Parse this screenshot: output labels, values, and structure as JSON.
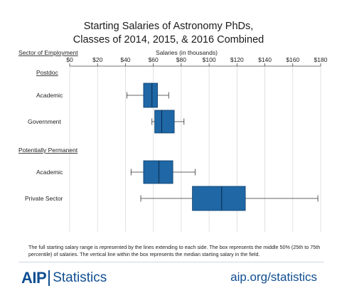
{
  "title_lines": [
    "Starting Salaries of Astronomy PhDs,",
    "Classes of 2014, 2015, & 2016 Combined"
  ],
  "chart_data": {
    "type": "boxplot",
    "orientation": "horizontal",
    "title": "Starting Salaries of Astronomy PhDs, Classes of 2014, 2015, & 2016 Combined",
    "xlabel": "Salaries (in thousands)",
    "row_header": "Sector of Employment",
    "xlim": [
      0,
      180
    ],
    "ticks": [
      0,
      20,
      40,
      60,
      80,
      100,
      120,
      140,
      160,
      180
    ],
    "tick_labels": [
      "$0",
      "$20",
      "$40",
      "$60",
      "$80",
      "$100",
      "$120",
      "$140",
      "$160",
      "$180"
    ],
    "grid": true,
    "groups": [
      {
        "label": "Postdoc",
        "rows": [
          {
            "category": "Academic",
            "min": 41,
            "q1": 53,
            "median": 59,
            "q3": 63,
            "max": 71
          },
          {
            "category": "Government",
            "min": 59,
            "q1": 61,
            "median": 66,
            "q3": 75,
            "max": 82
          }
        ]
      },
      {
        "label": "Potentially Permanent",
        "rows": [
          {
            "category": "Academic",
            "min": 44,
            "q1": 53,
            "median": 64,
            "q3": 74,
            "max": 90
          },
          {
            "category": "Private Sector",
            "min": 51,
            "q1": 88,
            "median": 109,
            "q3": 126,
            "max": 178
          }
        ]
      }
    ],
    "box_color": "#1f67a5"
  },
  "footnote": "The full starting salary range is represented by the lines extending to each side. The box represents the middle 50% (25th to 75th percentile) of salaries. The vertical line within the box represents the median starting salary in the field.",
  "logo": {
    "primary": "AIP",
    "secondary": "Statistics"
  },
  "site": "aip.org/statistics"
}
